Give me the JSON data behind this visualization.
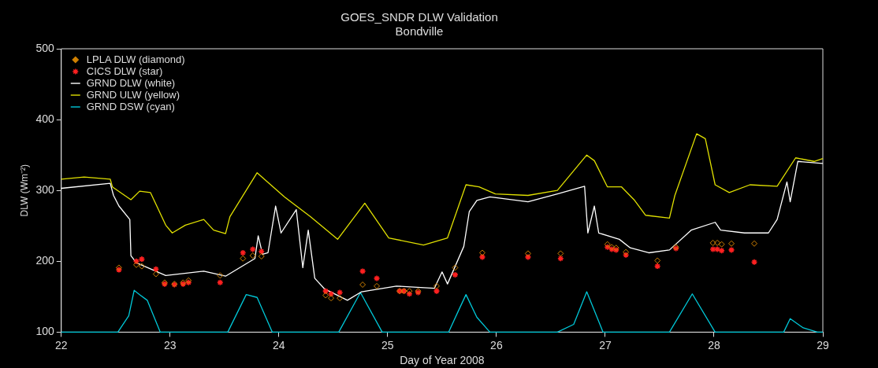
{
  "chart_data": {
    "type": "line",
    "title": "GOES_SNDR DLW Validation",
    "subtitle": "Bondville",
    "xlabel": "Day of Year 2008",
    "ylabel": "DLW (Wm⁻²)",
    "xlim": [
      22,
      29
    ],
    "xticks": [
      22,
      23,
      24,
      25,
      26,
      27,
      28,
      29
    ],
    "ylim": [
      100,
      500
    ],
    "yticks": [
      100,
      200,
      300,
      400,
      500
    ],
    "grid": false,
    "legend": "top left",
    "series": [
      {
        "name": "LPLA DLW (diamond)",
        "type": "scatter",
        "marker": "diamond",
        "color": "#d08000",
        "x": [
          22.53,
          22.69,
          22.74,
          22.87,
          22.95,
          23.04,
          23.12,
          23.17,
          23.46,
          23.67,
          23.76,
          23.84,
          24.43,
          24.48,
          24.56,
          24.77,
          24.9,
          25.11,
          25.15,
          25.2,
          25.28,
          25.45,
          25.62,
          25.87,
          26.29,
          26.59,
          27.02,
          27.06,
          27.1,
          27.19,
          27.48,
          27.65,
          27.99,
          28.03,
          28.07,
          28.16,
          28.37
        ],
        "values": [
          191,
          195,
          193,
          182,
          170,
          168,
          170,
          173,
          180,
          204,
          208,
          207,
          152,
          148,
          148,
          167,
          165,
          158,
          158,
          158,
          158,
          165,
          191,
          212,
          211,
          211,
          224,
          220,
          219,
          213,
          201,
          220,
          226,
          226,
          224,
          225,
          225
        ]
      },
      {
        "name": "CICS DLW (star)",
        "type": "scatter",
        "marker": "cross",
        "color": "#ff2020",
        "x": [
          22.53,
          22.69,
          22.74,
          22.87,
          22.95,
          23.04,
          23.12,
          23.17,
          23.46,
          23.67,
          23.76,
          23.84,
          24.43,
          24.48,
          24.56,
          24.77,
          24.9,
          25.11,
          25.15,
          25.2,
          25.28,
          25.45,
          25.62,
          25.87,
          26.29,
          26.59,
          27.02,
          27.06,
          27.1,
          27.19,
          27.48,
          27.65,
          27.99,
          28.03,
          28.07,
          28.16,
          28.37
        ],
        "values": [
          188,
          200,
          203,
          189,
          168,
          167,
          168,
          170,
          170,
          212,
          217,
          214,
          158,
          154,
          156,
          186,
          176,
          158,
          158,
          154,
          156,
          158,
          181,
          206,
          206,
          204,
          220,
          217,
          216,
          209,
          193,
          218,
          217,
          217,
          215,
          216,
          199
        ]
      },
      {
        "name": "GRND DLW (white)",
        "type": "line",
        "marker": "none",
        "color": "#ffffff",
        "x": [
          22.0,
          22.45,
          22.48,
          22.53,
          22.63,
          22.64,
          22.69,
          22.96,
          23.31,
          23.51,
          23.78,
          23.81,
          23.85,
          23.9,
          23.97,
          24.02,
          24.16,
          24.22,
          24.27,
          24.33,
          24.42,
          24.63,
          24.76,
          25.08,
          25.43,
          25.5,
          25.55,
          25.7,
          25.75,
          25.82,
          25.94,
          26.29,
          26.56,
          26.81,
          26.84,
          26.9,
          26.94,
          27.13,
          27.23,
          27.4,
          27.59,
          27.79,
          28.01,
          28.06,
          28.28,
          28.5,
          28.58,
          28.67,
          28.7,
          28.77,
          29.0
        ],
        "values": [
          303,
          310,
          293,
          278,
          259,
          208,
          198,
          180,
          186,
          179,
          204,
          236,
          210,
          212,
          278,
          240,
          273,
          191,
          244,
          176,
          161,
          145,
          157,
          165,
          162,
          185,
          168,
          221,
          270,
          286,
          291,
          284,
          295,
          306,
          240,
          278,
          240,
          231,
          219,
          212,
          216,
          244,
          255,
          244,
          240,
          240,
          259,
          312,
          284,
          341,
          338
        ]
      },
      {
        "name": "GRND ULW (yellow)",
        "type": "line",
        "marker": "none",
        "color": "#e0e000",
        "x": [
          22.0,
          22.21,
          22.45,
          22.47,
          22.64,
          22.72,
          22.82,
          22.96,
          23.02,
          23.14,
          23.31,
          23.4,
          23.51,
          23.55,
          23.8,
          24.05,
          24.29,
          24.54,
          24.79,
          25.01,
          25.33,
          25.55,
          25.72,
          25.84,
          25.99,
          26.29,
          26.56,
          26.83,
          26.9,
          27.02,
          27.15,
          27.27,
          27.37,
          27.59,
          27.64,
          27.84,
          27.92,
          28.01,
          28.14,
          28.33,
          28.58,
          28.75,
          28.92,
          29.0
        ],
        "values": [
          316,
          319,
          316,
          305,
          287,
          299,
          297,
          251,
          240,
          251,
          259,
          244,
          239,
          263,
          325,
          291,
          263,
          231,
          282,
          233,
          223,
          233,
          308,
          305,
          295,
          293,
          300,
          350,
          342,
          305,
          305,
          286,
          265,
          261,
          293,
          380,
          373,
          308,
          297,
          308,
          306,
          346,
          341,
          345
        ]
      },
      {
        "name": "GRND DSW (cyan)",
        "type": "line",
        "marker": "none",
        "color": "#00c8d8",
        "x": [
          22.0,
          22.52,
          22.62,
          22.67,
          22.72,
          22.79,
          22.91,
          23.53,
          23.7,
          23.8,
          23.94,
          24.55,
          24.75,
          24.95,
          25.56,
          25.65,
          25.72,
          25.82,
          25.94,
          26.56,
          26.71,
          26.83,
          26.98,
          27.59,
          27.8,
          28.01,
          28.64,
          28.7,
          28.82,
          28.95,
          29.0
        ],
        "values": [
          100,
          100,
          123,
          159,
          153,
          145,
          100,
          100,
          153,
          149,
          100,
          100,
          156,
          100,
          100,
          130,
          153,
          121,
          100,
          100,
          111,
          157,
          100,
          100,
          154,
          100,
          100,
          119,
          106,
          100,
          100
        ]
      }
    ]
  }
}
